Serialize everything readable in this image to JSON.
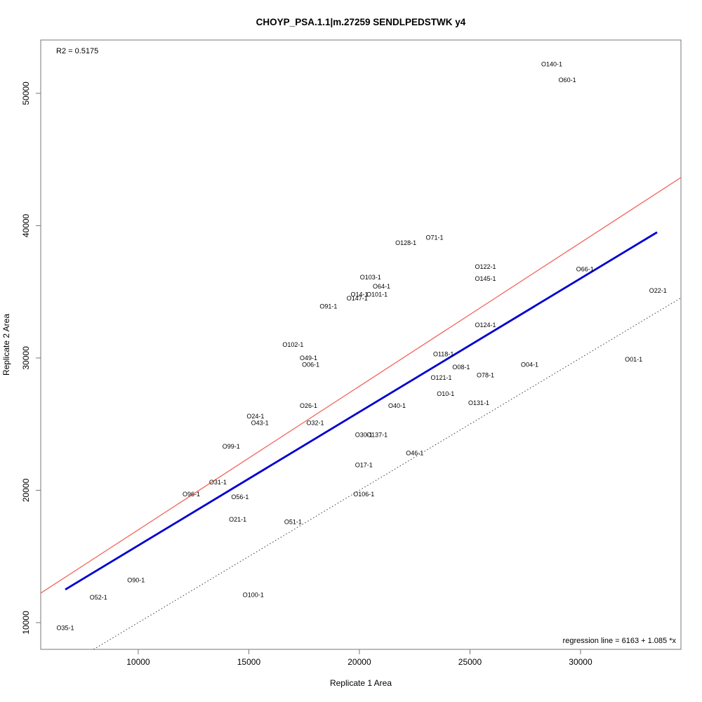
{
  "title": "CHOYP_PSA.1.1|m.27259 SENDLPEDSTWK y4",
  "annotations": {
    "r2": "R2 = 0.5175",
    "regression": "regression line = 6163 + 1.085 *x"
  },
  "chart_data": {
    "type": "scatter",
    "title": "CHOYP_PSA.1.1|m.27259 SENDLPEDSTWK y4",
    "xlabel": "Replicate 1 Area",
    "ylabel": "Replicate 2 Area",
    "xlim": [
      5590,
      34540
    ],
    "ylim": [
      7980,
      54030
    ],
    "x_ticks": [
      10000,
      15000,
      20000,
      25000,
      30000
    ],
    "y_ticks": [
      10000,
      20000,
      30000,
      40000,
      50000
    ],
    "grid": false,
    "legend": "none",
    "r_squared": 0.5175,
    "regression_line": {
      "intercept": 6163,
      "slope": 1.085,
      "color": "#f2655e",
      "style": "solid"
    },
    "fit_line": {
      "x1": 6700,
      "y1": 12500,
      "x2": 33460,
      "y2": 39500,
      "color": "#0000d0",
      "style": "solid-thick"
    },
    "identity_line": {
      "intercept": 0,
      "slope": 1,
      "color": "#3a3a3a",
      "style": "dotted"
    },
    "points": [
      {
        "label": "O140-1",
        "x": 28700,
        "y": 52200
      },
      {
        "label": "O60-1",
        "x": 29400,
        "y": 51000
      },
      {
        "label": "O71-1",
        "x": 23400,
        "y": 39100
      },
      {
        "label": "O128-1",
        "x": 22100,
        "y": 38700
      },
      {
        "label": "O122-1",
        "x": 25700,
        "y": 36900
      },
      {
        "label": "O66-1",
        "x": 30200,
        "y": 36700
      },
      {
        "label": "O103-1",
        "x": 20500,
        "y": 36100
      },
      {
        "label": "O145-1",
        "x": 25700,
        "y": 36000
      },
      {
        "label": "O64-1",
        "x": 21000,
        "y": 35400
      },
      {
        "label": "O22-1",
        "x": 33500,
        "y": 35100
      },
      {
        "label": "O101-1",
        "x": 20800,
        "y": 34800
      },
      {
        "label": "O14-1",
        "x": 20000,
        "y": 34800
      },
      {
        "label": "O147-1",
        "x": 19900,
        "y": 34500
      },
      {
        "label": "O91-1",
        "x": 18600,
        "y": 33900
      },
      {
        "label": "O124-1",
        "x": 25700,
        "y": 32500
      },
      {
        "label": "O102-1",
        "x": 17000,
        "y": 31000
      },
      {
        "label": "O118-1",
        "x": 23800,
        "y": 30300
      },
      {
        "label": "O49-1",
        "x": 17700,
        "y": 30000
      },
      {
        "label": "O01-1",
        "x": 32400,
        "y": 29900
      },
      {
        "label": "O04-1",
        "x": 27700,
        "y": 29500
      },
      {
        "label": "O06-1",
        "x": 17800,
        "y": 29500
      },
      {
        "label": "O08-1",
        "x": 24600,
        "y": 29300
      },
      {
        "label": "O78-1",
        "x": 25700,
        "y": 28700
      },
      {
        "label": "O121-1",
        "x": 23700,
        "y": 28500
      },
      {
        "label": "O10-1",
        "x": 23900,
        "y": 27300
      },
      {
        "label": "O131-1",
        "x": 25400,
        "y": 26600
      },
      {
        "label": "O26-1",
        "x": 17700,
        "y": 26400
      },
      {
        "label": "O40-1",
        "x": 21700,
        "y": 26400
      },
      {
        "label": "O24-1",
        "x": 15300,
        "y": 25600
      },
      {
        "label": "O43-1",
        "x": 15500,
        "y": 25100
      },
      {
        "label": "O32-1",
        "x": 18000,
        "y": 25100
      },
      {
        "label": "O30-1",
        "x": 20200,
        "y": 24200
      },
      {
        "label": "O137-1",
        "x": 20800,
        "y": 24200
      },
      {
        "label": "O99-1",
        "x": 14200,
        "y": 23300
      },
      {
        "label": "O46-1",
        "x": 22500,
        "y": 22800
      },
      {
        "label": "O17-1",
        "x": 20200,
        "y": 21900
      },
      {
        "label": "O31-1",
        "x": 13600,
        "y": 20600
      },
      {
        "label": "O96-1",
        "x": 12400,
        "y": 19700
      },
      {
        "label": "O106-1",
        "x": 20200,
        "y": 19700
      },
      {
        "label": "O56-1",
        "x": 14600,
        "y": 19500
      },
      {
        "label": "O21-1",
        "x": 14500,
        "y": 17800
      },
      {
        "label": "O51-1",
        "x": 17000,
        "y": 17600
      },
      {
        "label": "O90-1",
        "x": 9900,
        "y": 13200
      },
      {
        "label": "O100-1",
        "x": 15200,
        "y": 12100
      },
      {
        "label": "O52-1",
        "x": 8200,
        "y": 11900
      },
      {
        "label": "O35-1",
        "x": 6700,
        "y": 9600
      }
    ]
  }
}
